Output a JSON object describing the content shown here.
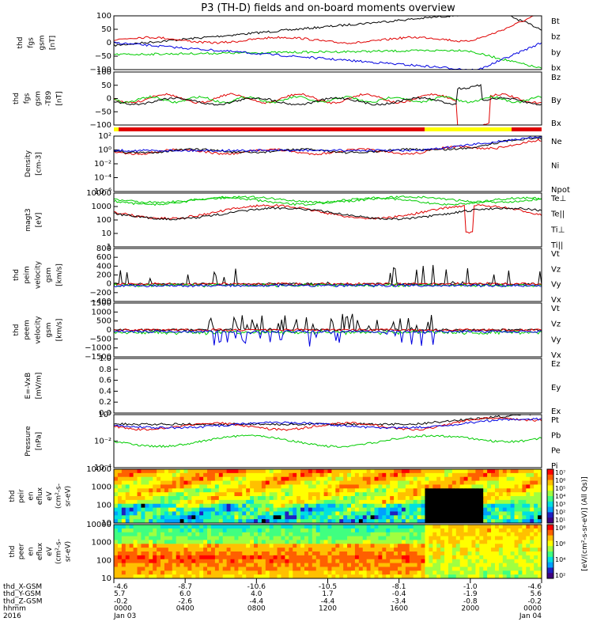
{
  "title": "P3 (TH-D) fields and on-board moments overview",
  "colors": {
    "black": "#000000",
    "red": "#e00000",
    "green": "#00cc00",
    "blue": "#0000e0",
    "yellow": "#ffff00"
  },
  "chart_data": [
    {
      "type": "line",
      "ylabel": [
        "thd",
        "fgs",
        "gsm",
        "[nT]"
      ],
      "yticks": [
        "100",
        "50",
        "0",
        "−50",
        "−100"
      ],
      "ylim": [
        -100,
        100
      ],
      "legend": [
        {
          "name": "Bt",
          "color": "#000000"
        },
        {
          "name": "bz",
          "color": "#e00000"
        },
        {
          "name": "by",
          "color": "#00cc00"
        },
        {
          "name": "bx",
          "color": "#0000e0"
        }
      ]
    },
    {
      "type": "line",
      "ylabel": [
        "thd",
        "fgs",
        "gsm",
        "-T89",
        "[nT]"
      ],
      "yticks": [
        "100",
        "50",
        "0",
        "−50",
        "−100"
      ],
      "ylim": [
        -100,
        100
      ],
      "legend": [
        {
          "name": "Bz",
          "color": "#e00000"
        },
        {
          "name": "By",
          "color": "#00cc00"
        },
        {
          "name": "Bx",
          "color": "#000000"
        }
      ]
    },
    {
      "type": "line",
      "ylabel": [
        "Density",
        "[cm-3]"
      ],
      "yticks": [
        "10²",
        "10⁰",
        "10⁻²",
        "10⁻⁴",
        "10⁻⁶"
      ],
      "scale": "log",
      "legend": [
        {
          "name": "Ne",
          "color": "#e00000"
        },
        {
          "name": "Ni",
          "color": "#000000"
        },
        {
          "name": "Npot",
          "color": "#0000e0"
        }
      ]
    },
    {
      "type": "line",
      "ylabel": [
        "magt3",
        "[eV]"
      ],
      "yticks": [
        "10000",
        "1000",
        "100",
        "10",
        "1"
      ],
      "scale": "log",
      "legend": [
        {
          "name": "Te⊥",
          "color": "#e00000"
        },
        {
          "name": "Te||",
          "color": "#000000"
        },
        {
          "name": "Ti⊥",
          "color": "#00cc00"
        },
        {
          "name": "Ti||",
          "color": "#00cc00"
        }
      ]
    },
    {
      "type": "line",
      "ylabel": [
        "thd",
        "peim",
        "velocity",
        "gsm",
        "[km/s]"
      ],
      "yticks": [
        "800",
        "600",
        "400",
        "200",
        "0",
        "−200",
        "−400"
      ],
      "ylim": [
        -400,
        800
      ],
      "legend": [
        {
          "name": "Vt",
          "color": "#000000"
        },
        {
          "name": "Vz",
          "color": "#e00000"
        },
        {
          "name": "Vy",
          "color": "#00cc00"
        },
        {
          "name": "Vx",
          "color": "#0000e0"
        }
      ]
    },
    {
      "type": "line",
      "ylabel": [
        "thd",
        "peem",
        "velocity",
        "gsm",
        "[km/s]"
      ],
      "yticks": [
        "1500",
        "1000",
        "500",
        "0",
        "−500",
        "−1000",
        "−1500"
      ],
      "ylim": [
        -1500,
        1500
      ],
      "legend": [
        {
          "name": "Vt",
          "color": "#000000"
        },
        {
          "name": "Vz",
          "color": "#e00000"
        },
        {
          "name": "Vy",
          "color": "#00cc00"
        },
        {
          "name": "Vx",
          "color": "#0000e0"
        }
      ]
    },
    {
      "type": "line",
      "ylabel": [
        "E=-VxB",
        "[mV/m]"
      ],
      "yticks": [
        "1.0",
        "0.8",
        "0.6",
        "0.4",
        "0.2",
        "0.0"
      ],
      "ylim": [
        0,
        1
      ],
      "legend": [
        {
          "name": "Ez",
          "color": "#e00000"
        },
        {
          "name": "Ey",
          "color": "#00cc00"
        },
        {
          "name": "Ex",
          "color": "#0000e0"
        }
      ]
    },
    {
      "type": "line",
      "ylabel": [
        "Pressure",
        "[nPa]"
      ],
      "yticks": [
        "10⁰",
        "10⁻²",
        "10⁻⁴"
      ],
      "scale": "log",
      "legend": [
        {
          "name": "Pt",
          "color": "#000000"
        },
        {
          "name": "Pb",
          "color": "#e00000"
        },
        {
          "name": "Pe",
          "color": "#00cc00"
        },
        {
          "name": "Pi",
          "color": "#0000e0"
        }
      ]
    },
    {
      "type": "heatmap",
      "ylabel": [
        "thd",
        "peir",
        "en",
        "eflux",
        "eV",
        "(cm²-s-",
        "sr-eV)"
      ],
      "yticks": [
        "10000",
        "1000",
        "100",
        "10"
      ],
      "scale": "log",
      "colorbar_ticks": [
        "10⁷",
        "10⁶",
        "10⁵",
        "10⁴",
        "10³",
        "10²",
        "10¹"
      ]
    },
    {
      "type": "heatmap",
      "ylabel": [
        "thd",
        "peer",
        "en",
        "eflux",
        "eV",
        "(cm²-s-",
        "sr-eV)"
      ],
      "yticks": [
        "10000",
        "1000",
        "100",
        "10"
      ],
      "scale": "log",
      "colorbar_ticks": [
        "10⁸",
        "10⁶",
        "10⁴",
        "10²"
      ],
      "colorbar_label": "[eV/(cm²-s-sr-eV)] (All Qs)]"
    }
  ],
  "x_axis": {
    "labels": [
      "thd_X-GSM",
      "thd_Y-GSM",
      "thd_Z-GSM",
      "hhmm",
      "2016"
    ],
    "ticks": [
      {
        "lines": [
          "-4.6",
          "5.7",
          "-0.2",
          "0000",
          "Jan 03"
        ]
      },
      {
        "lines": [
          "-8.7",
          "6.0",
          "-2.6",
          "0400",
          ""
        ]
      },
      {
        "lines": [
          "-10.6",
          "4.0",
          "-4.4",
          "0800",
          ""
        ]
      },
      {
        "lines": [
          "-10.5",
          "1.7",
          "-4.4",
          "1200",
          ""
        ]
      },
      {
        "lines": [
          "-8.1",
          "-0.4",
          "-3.4",
          "1600",
          ""
        ]
      },
      {
        "lines": [
          "-1.0",
          "-1.9",
          "-0.8",
          "2000",
          ""
        ]
      },
      {
        "lines": [
          "-4.6",
          "5.6",
          "-0.2",
          "0000",
          "Jan 04"
        ]
      }
    ]
  }
}
